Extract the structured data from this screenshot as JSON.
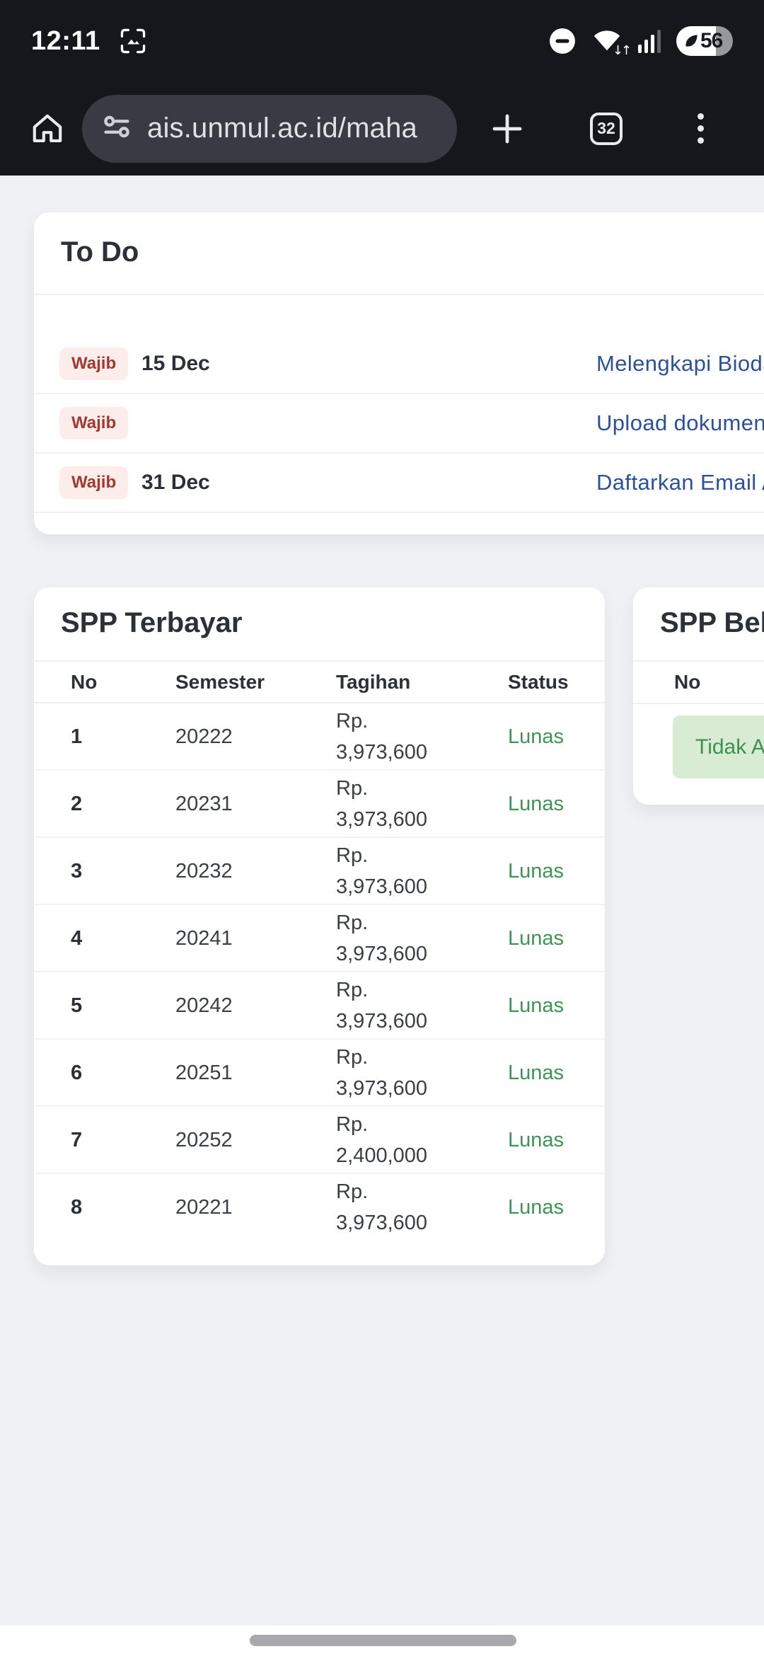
{
  "status_bar": {
    "time": "12:11",
    "battery_percent": "56",
    "icons": [
      "screenshot",
      "do-not-disturb",
      "wifi",
      "signal",
      "battery-saver-leaf"
    ]
  },
  "toolbar": {
    "url": "ais.unmul.ac.id/maha",
    "tab_count": "32",
    "icons": [
      "home",
      "site-settings",
      "new-tab-plus",
      "tab-switcher",
      "overflow-menu"
    ]
  },
  "todo_card": {
    "title": "To Do",
    "items": [
      {
        "badge": "Wajib",
        "due": "15 Dec",
        "task": "Melengkapi Biodat"
      },
      {
        "badge": "Wajib",
        "due": "",
        "task": "Upload dokumen r"
      },
      {
        "badge": "Wajib",
        "due": "31 Dec",
        "task": "Daftarkan Email A"
      }
    ]
  },
  "spp_paid_card": {
    "title": "SPP Terbayar",
    "columns": [
      "No",
      "Semester",
      "Tagihan",
      "Status"
    ],
    "rows": [
      [
        "1",
        "20222",
        "Rp. 3,973,600",
        "Lunas"
      ],
      [
        "2",
        "20231",
        "Rp. 3,973,600",
        "Lunas"
      ],
      [
        "3",
        "20232",
        "Rp. 3,973,600",
        "Lunas"
      ],
      [
        "4",
        "20241",
        "Rp. 3,973,600",
        "Lunas"
      ],
      [
        "5",
        "20242",
        "Rp. 3,973,600",
        "Lunas"
      ],
      [
        "6",
        "20251",
        "Rp. 3,973,600",
        "Lunas"
      ],
      [
        "7",
        "20252",
        "Rp. 2,400,000",
        "Lunas"
      ],
      [
        "8",
        "20221",
        "Rp. 3,973,600",
        "Lunas"
      ]
    ]
  },
  "spp_unpaid_card": {
    "title": "SPP Belu",
    "columns": [
      "No"
    ],
    "empty_message": "Tidak Ada"
  },
  "colors": {
    "system_bar_bg": "#15171c",
    "url_pill_bg": "#383b43",
    "page_bg": "#eff1f4",
    "link_blue": "#2d509e",
    "status_green": "#3e9455",
    "alert_green_bg": "#d8ecd4",
    "alert_green_text": "#3f9052",
    "badge_red_bg": "#fcedea",
    "badge_red_text": "#a03a31"
  }
}
